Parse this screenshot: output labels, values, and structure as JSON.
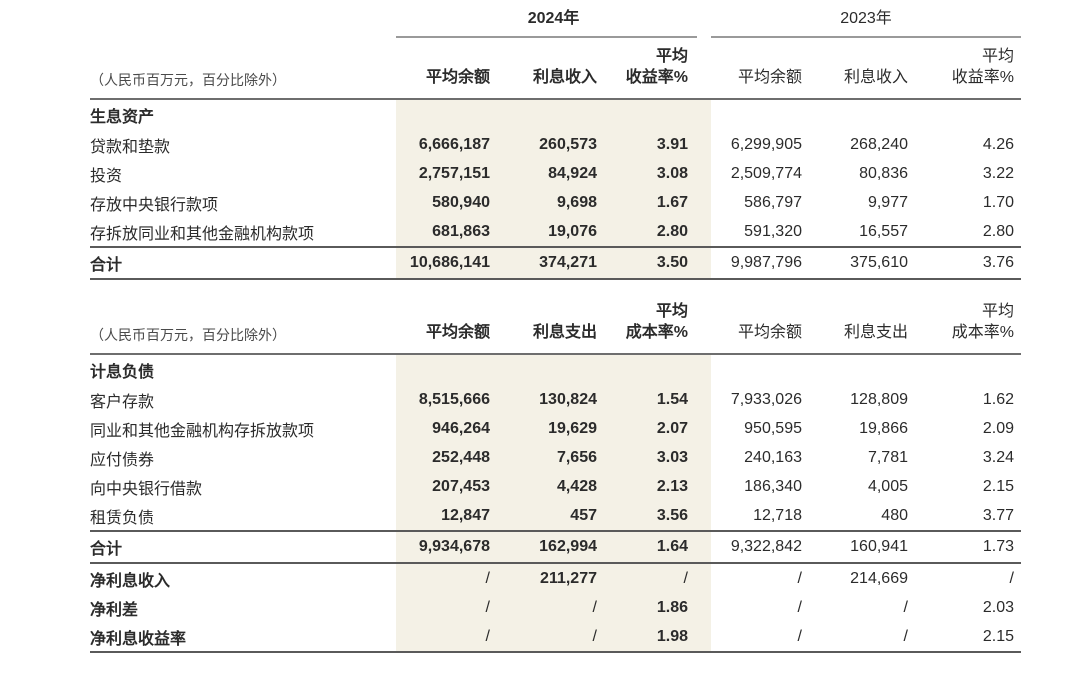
{
  "note_label": "（人民币百万元，百分比除外）",
  "colors": {
    "highlight": "#f4f1e6"
  },
  "table1": {
    "year_2024": "2024年",
    "year_2023": "2023年",
    "headers": {
      "avg_balance": "平均余额",
      "interest": "利息收入",
      "rate_line1": "平均",
      "rate_line2": "收益率%"
    },
    "section_label": "生息资产",
    "rows": [
      {
        "label": "贷款和垫款",
        "y2024": [
          "6,666,187",
          "260,573",
          "3.91"
        ],
        "y2023": [
          "6,299,905",
          "268,240",
          "4.26"
        ]
      },
      {
        "label": "投资",
        "y2024": [
          "2,757,151",
          "84,924",
          "3.08"
        ],
        "y2023": [
          "2,509,774",
          "80,836",
          "3.22"
        ]
      },
      {
        "label": "存放中央银行款项",
        "y2024": [
          "580,940",
          "9,698",
          "1.67"
        ],
        "y2023": [
          "586,797",
          "9,977",
          "1.70"
        ]
      },
      {
        "label": "存拆放同业和其他金融机构款项",
        "y2024": [
          "681,863",
          "19,076",
          "2.80"
        ],
        "y2023": [
          "591,320",
          "16,557",
          "2.80"
        ]
      }
    ],
    "total": {
      "label": "合计",
      "y2024": [
        "10,686,141",
        "374,271",
        "3.50"
      ],
      "y2023": [
        "9,987,796",
        "375,610",
        "3.76"
      ]
    }
  },
  "table2": {
    "headers": {
      "avg_balance": "平均余额",
      "interest": "利息支出",
      "rate_line1": "平均",
      "rate_line2": "成本率%"
    },
    "section_label": "计息负债",
    "rows": [
      {
        "label": "客户存款",
        "y2024": [
          "8,515,666",
          "130,824",
          "1.54"
        ],
        "y2023": [
          "7,933,026",
          "128,809",
          "1.62"
        ]
      },
      {
        "label": "同业和其他金融机构存拆放款项",
        "y2024": [
          "946,264",
          "19,629",
          "2.07"
        ],
        "y2023": [
          "950,595",
          "19,866",
          "2.09"
        ]
      },
      {
        "label": "应付债券",
        "y2024": [
          "252,448",
          "7,656",
          "3.03"
        ],
        "y2023": [
          "240,163",
          "7,781",
          "3.24"
        ]
      },
      {
        "label": "向中央银行借款",
        "y2024": [
          "207,453",
          "4,428",
          "2.13"
        ],
        "y2023": [
          "186,340",
          "4,005",
          "2.15"
        ]
      },
      {
        "label": "租赁负债",
        "y2024": [
          "12,847",
          "457",
          "3.56"
        ],
        "y2023": [
          "12,718",
          "480",
          "3.77"
        ]
      }
    ],
    "total": {
      "label": "合计",
      "y2024": [
        "9,934,678",
        "162,994",
        "1.64"
      ],
      "y2023": [
        "9,322,842",
        "160,941",
        "1.73"
      ]
    },
    "summary": [
      {
        "label": "净利息收入",
        "y2024": [
          "/",
          "211,277",
          "/"
        ],
        "y2023": [
          "/",
          "214,669",
          "/"
        ]
      },
      {
        "label": "净利差",
        "y2024": [
          "/",
          "/",
          "1.86"
        ],
        "y2023": [
          "/",
          "/",
          "2.03"
        ]
      },
      {
        "label": "净利息收益率",
        "y2024": [
          "/",
          "/",
          "1.98"
        ],
        "y2023": [
          "/",
          "/",
          "2.15"
        ]
      }
    ]
  }
}
